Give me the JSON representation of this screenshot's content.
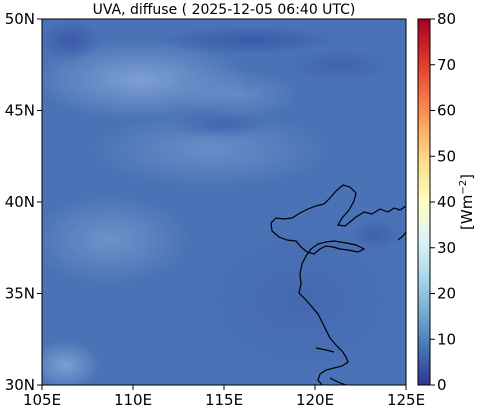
{
  "map": {
    "title": "UVA, diffuse ( 2025-12-05 06:40 UTC)",
    "lon_range": [
      105,
      125
    ],
    "lat_range": [
      30,
      50
    ],
    "lon_ticks": [
      {
        "value": 105,
        "label": "105E"
      },
      {
        "value": 110,
        "label": "110E"
      },
      {
        "value": 115,
        "label": "115E"
      },
      {
        "value": 120,
        "label": "120E"
      },
      {
        "value": 125,
        "label": "125E"
      }
    ],
    "lat_ticks": [
      {
        "value": 30,
        "label": "30N"
      },
      {
        "value": 35,
        "label": "35N"
      },
      {
        "value": 40,
        "label": "40N"
      },
      {
        "value": 45,
        "label": "45N"
      },
      {
        "value": 50,
        "label": "50N"
      }
    ],
    "field_color_base": "#4a72b6",
    "coastline_color": "#000000"
  },
  "colorbar": {
    "label": "[Wm−2]",
    "label_base": "[Wm",
    "label_sup": "−2",
    "label_end": "]",
    "range": [
      0,
      80
    ],
    "ticks": [
      {
        "value": 0,
        "label": "0"
      },
      {
        "value": 10,
        "label": "10"
      },
      {
        "value": 20,
        "label": "20"
      },
      {
        "value": 30,
        "label": "30"
      },
      {
        "value": 40,
        "label": "40"
      },
      {
        "value": 50,
        "label": "50"
      },
      {
        "value": 60,
        "label": "60"
      },
      {
        "value": 70,
        "label": "70"
      },
      {
        "value": 80,
        "label": "80"
      }
    ],
    "colormap": "RdYlBu_r",
    "colors": [
      "#313695",
      "#4575b4",
      "#74add1",
      "#abd9e9",
      "#e0f3f8",
      "#ffffbf",
      "#fee090",
      "#fdae61",
      "#f46d43",
      "#d73027",
      "#a50026"
    ]
  }
}
